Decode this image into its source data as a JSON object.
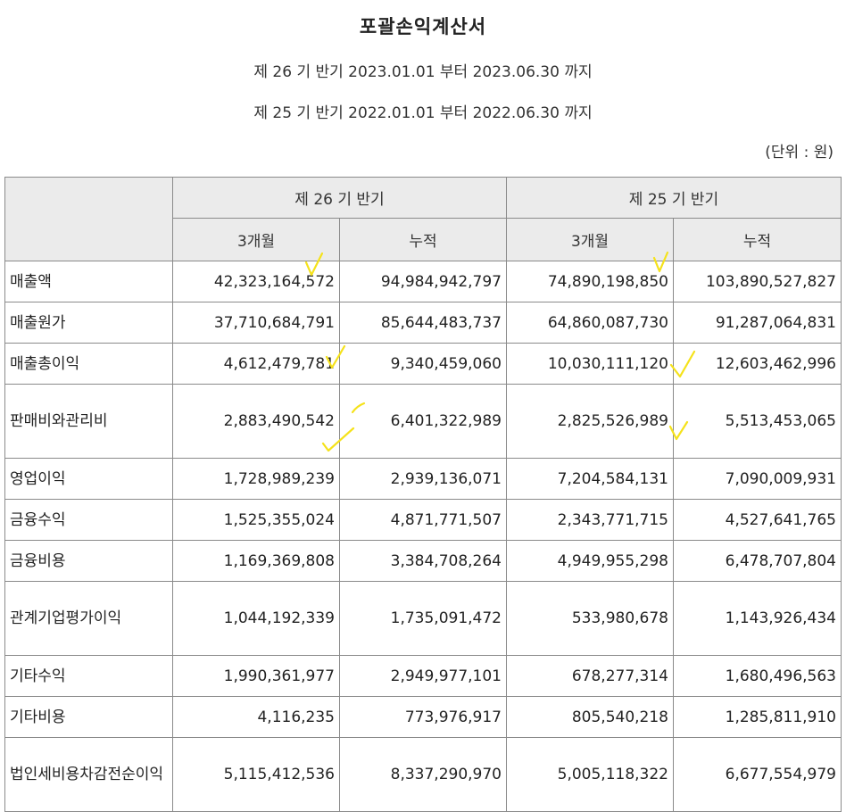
{
  "header": {
    "title": "포괄손익계산서",
    "period_current": "제 26 기 반기 2023.01.01 부터 2023.06.30 까지",
    "period_prior": "제 25 기 반기 2022.01.01 부터 2022.06.30 까지",
    "unit": "(단위 : 원)"
  },
  "table": {
    "group_headers": [
      "제 26 기 반기",
      "제 25 기 반기"
    ],
    "sub_headers": [
      "3개월",
      "누적",
      "3개월",
      "누적"
    ],
    "rows": [
      {
        "label": "매출액",
        "values": [
          "42,323,164,572",
          "94,984,942,797",
          "74,890,198,850",
          "103,890,527,827"
        ]
      },
      {
        "label": "매출원가",
        "values": [
          "37,710,684,791",
          "85,644,483,737",
          "64,860,087,730",
          "91,287,064,831"
        ]
      },
      {
        "label": "매출총이익",
        "values": [
          "4,612,479,781",
          "9,340,459,060",
          "10,030,111,120",
          "12,603,462,996"
        ]
      },
      {
        "label": "판매비와관리비",
        "values": [
          "2,883,490,542",
          "6,401,322,989",
          "2,825,526,989",
          "5,513,453,065"
        ]
      },
      {
        "label": "영업이익",
        "values": [
          "1,728,989,239",
          "2,939,136,071",
          "7,204,584,131",
          "7,090,009,931"
        ]
      },
      {
        "label": "금융수익",
        "values": [
          "1,525,355,024",
          "4,871,771,507",
          "2,343,771,715",
          "4,527,641,765"
        ]
      },
      {
        "label": "금융비용",
        "values": [
          "1,169,369,808",
          "3,384,708,264",
          "4,949,955,298",
          "6,478,707,804"
        ]
      },
      {
        "label": "관계기업평가이익",
        "values": [
          "1,044,192,339",
          "1,735,091,472",
          "533,980,678",
          "1,143,926,434"
        ]
      },
      {
        "label": "기타수익",
        "values": [
          "1,990,361,977",
          "2,949,977,101",
          "678,277,314",
          "1,680,496,563"
        ]
      },
      {
        "label": "기타비용",
        "values": [
          "4,116,235",
          "773,976,917",
          "805,540,218",
          "1,285,811,910"
        ]
      },
      {
        "label": "법인세비용차감전순이익",
        "values": [
          "5,115,412,536",
          "8,337,290,970",
          "5,005,118,322",
          "6,677,554,979"
        ]
      }
    ]
  },
  "annotations": {
    "color": "#f5e21a"
  }
}
